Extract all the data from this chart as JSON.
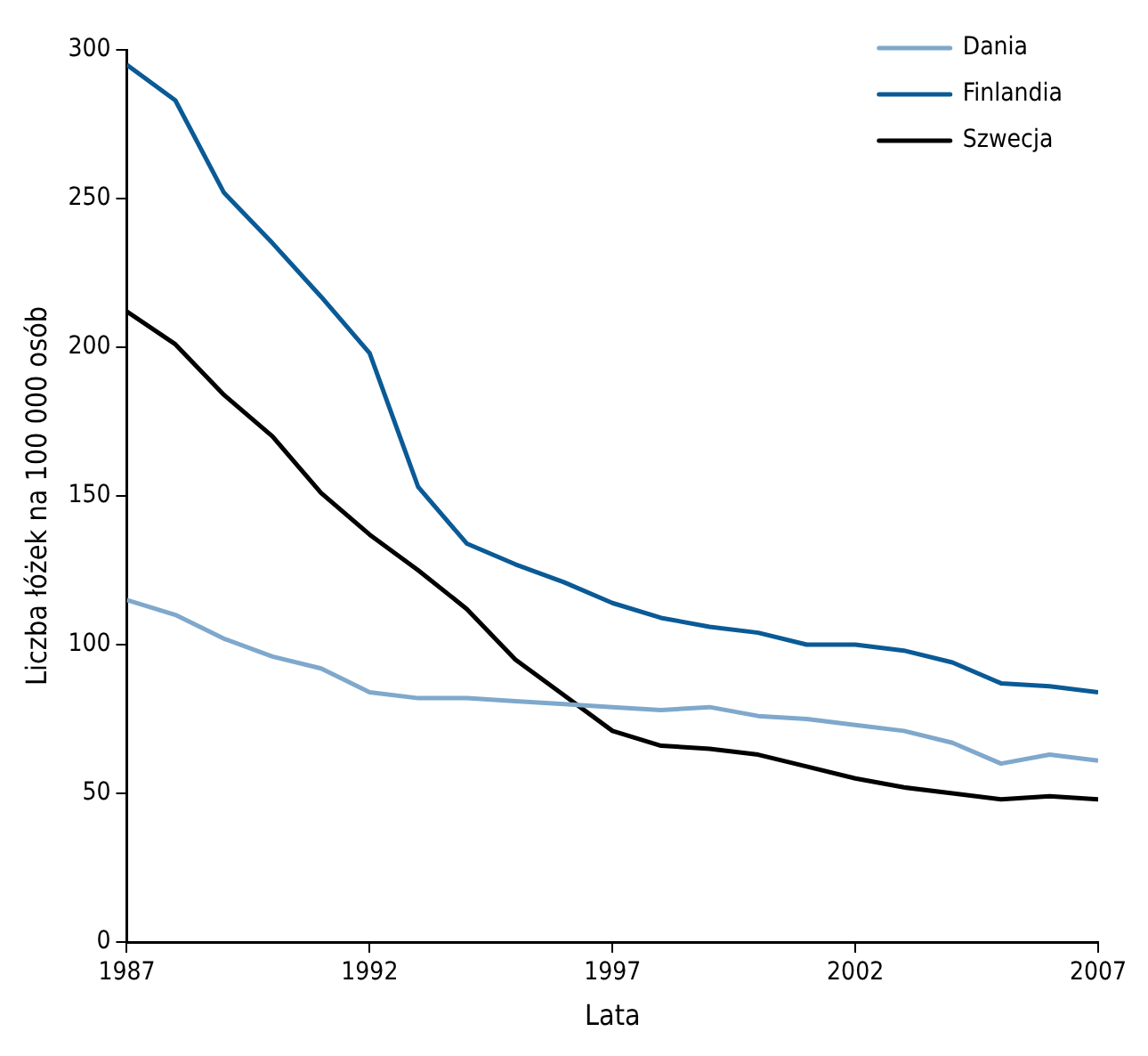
{
  "chart_data": {
    "type": "line",
    "xlabel": "Lata",
    "ylabel": "Liczba łóżek na 100 000 osób",
    "x": [
      1987,
      1988,
      1989,
      1990,
      1991,
      1992,
      1993,
      1994,
      1995,
      1996,
      1997,
      1998,
      1999,
      2000,
      2001,
      2002,
      2003,
      2004,
      2005,
      2006,
      2007
    ],
    "series": [
      {
        "name": "Dania",
        "color": "#7fa8cc",
        "values": [
          115,
          110,
          102,
          96,
          92,
          84,
          82,
          82,
          81,
          80,
          79,
          78,
          79,
          76,
          75,
          73,
          71,
          67,
          60,
          63,
          61
        ]
      },
      {
        "name": "Finlandia",
        "color": "#0a5a96",
        "values": [
          295,
          283,
          252,
          235,
          217,
          198,
          153,
          134,
          127,
          121,
          114,
          109,
          106,
          104,
          100,
          100,
          98,
          94,
          87,
          86,
          84
        ]
      },
      {
        "name": "Szwecja",
        "color": "#000000",
        "values": [
          212,
          201,
          184,
          170,
          151,
          137,
          125,
          112,
          95,
          83,
          71,
          66,
          65,
          63,
          59,
          55,
          52,
          50,
          48,
          49,
          48
        ]
      }
    ],
    "xlim": [
      1987,
      2007
    ],
    "xticks": [
      1987,
      1992,
      1997,
      2002,
      2007
    ],
    "ylim": [
      0,
      300
    ],
    "yticks": [
      0,
      50,
      100,
      150,
      200,
      250,
      300
    ],
    "grid": false,
    "legend": "top right",
    "marker": "none",
    "line_style": "solid"
  }
}
